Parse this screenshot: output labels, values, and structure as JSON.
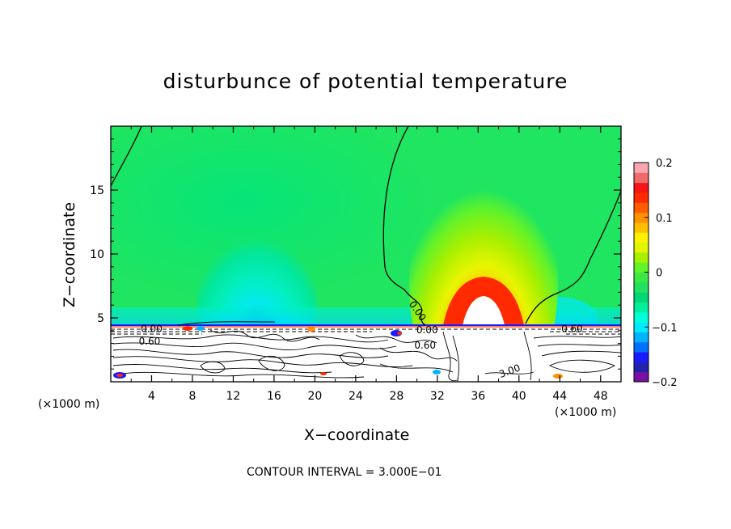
{
  "chart_data": {
    "type": "heatmap",
    "title": "disturbunce of potential temperature",
    "xlabel": "X−coordinate",
    "ylabel": "Z−coordinate",
    "x_unit_left": "(×1000 m)",
    "x_unit_right": "(×1000 m)",
    "footer": "CONTOUR INTERVAL = 3.000E−01",
    "xlim": [
      0,
      50
    ],
    "ylim": [
      0,
      20
    ],
    "x_ticks": [
      4,
      8,
      12,
      16,
      20,
      24,
      28,
      32,
      36,
      40,
      44,
      48
    ],
    "x_tick_labels": [
      "4",
      "8",
      "12",
      "16",
      "20",
      "24",
      "28",
      "32",
      "36",
      "40",
      "44",
      "48"
    ],
    "y_ticks": [
      5,
      10,
      15
    ],
    "y_tick_labels": [
      "5",
      "10",
      "15"
    ],
    "colorbar": {
      "range": [
        -0.2,
        0.2
      ],
      "tick_labels": [
        "0.2",
        "0.1",
        "0",
        "−0.1",
        "−0.2"
      ],
      "colors": [
        "#7a0fa3",
        "#2222aa",
        "#1a1aff",
        "#0070ff",
        "#00b4ff",
        "#00eaff",
        "#00ffd9",
        "#00ef9a",
        "#00d875",
        "#22e060",
        "#3ce844",
        "#62f22a",
        "#a8f000",
        "#e2f500",
        "#fff200",
        "#ffc000",
        "#ff9000",
        "#ff5c00",
        "#ff2a00",
        "#f51515",
        "#f06a6a",
        "#f8a6b0"
      ]
    },
    "contour_labels": [
      {
        "text": "0.00",
        "x": 29.8,
        "z": 5.4,
        "angle": 55
      },
      {
        "text": "0.00",
        "x": 4.0,
        "z": 3.9,
        "angle": 0
      },
      {
        "text": "0.60",
        "x": 3.8,
        "z": 2.9,
        "angle": 0
      },
      {
        "text": "0.00",
        "x": 31.0,
        "z": 3.8,
        "angle": 0
      },
      {
        "text": "0.60",
        "x": 30.8,
        "z": 2.6,
        "angle": 0
      },
      {
        "text": "0.60",
        "x": 45.2,
        "z": 3.9,
        "angle": 0
      },
      {
        "text": "3.00",
        "x": 39.2,
        "z": 0.6,
        "angle": -20
      }
    ]
  }
}
